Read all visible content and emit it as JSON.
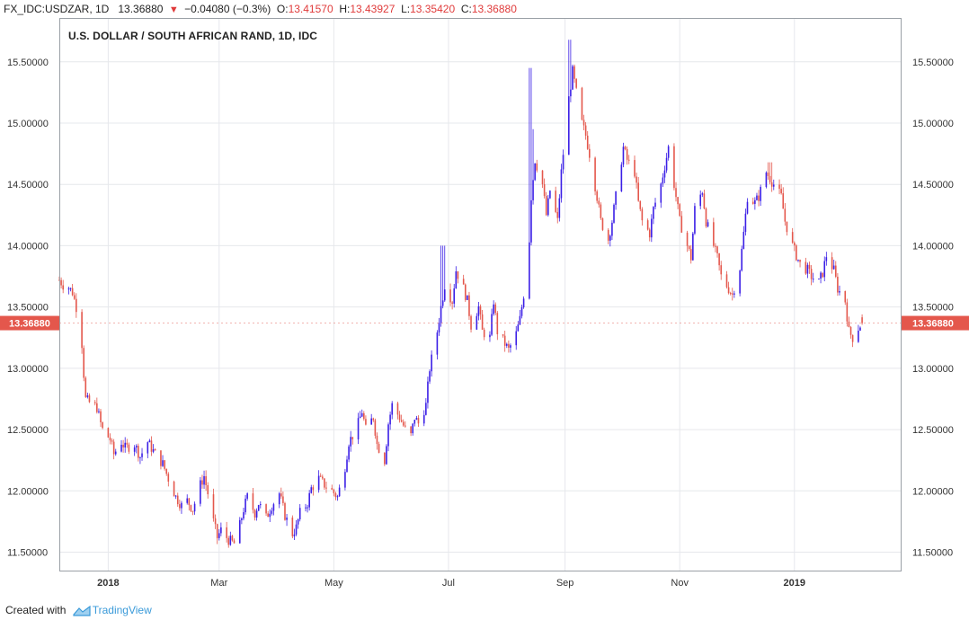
{
  "header": {
    "symbol": "FX_IDC:USDZAR, 1D",
    "last": "13.36880",
    "change": "−0.04080 (−0.3%)",
    "o_label": "O:",
    "o_value": "13.41570",
    "h_label": "H:",
    "h_value": "13.43927",
    "l_label": "L:",
    "l_value": "13.35420",
    "c_label": "C:",
    "c_value": "13.36880"
  },
  "footer": {
    "created_with": "Created with",
    "brand": "TradingView"
  },
  "chart_data": {
    "type": "candlestick",
    "title": "U.S. DOLLAR / SOUTH AFRICAN RAND, 1D, IDC",
    "ylim": [
      11.35,
      15.85
    ],
    "y_ticks": [
      "11.50000",
      "12.00000",
      "12.50000",
      "13.00000",
      "13.50000",
      "14.00000",
      "14.50000",
      "15.00000",
      "15.50000"
    ],
    "x_tick_labels": [
      {
        "label": "2018",
        "x": "2018-01-01",
        "bold": true
      },
      {
        "label": "Mar",
        "x": "2018-03-01",
        "bold": false
      },
      {
        "label": "May",
        "x": "2018-05-01",
        "bold": false
      },
      {
        "label": "Jul",
        "x": "2018-07-01",
        "bold": false
      },
      {
        "label": "Sep",
        "x": "2018-09-01",
        "bold": false
      },
      {
        "label": "Nov",
        "x": "2018-11-01",
        "bold": false
      },
      {
        "label": "2019",
        "x": "2019-01-01",
        "bold": true
      }
    ],
    "xlim": [
      "2017-12-06",
      "2019-02-27"
    ],
    "last_price": "13.36880",
    "last_value": 13.3688,
    "up_color": "#3b1fe6",
    "down_color": "#e4574c",
    "price_label_color": "#e4574c",
    "close_path": [
      [
        "2017-12-06",
        13.72
      ],
      [
        "2017-12-08",
        13.68
      ],
      [
        "2017-12-11",
        13.66
      ],
      [
        "2017-12-13",
        13.62
      ],
      [
        "2017-12-15",
        13.5
      ],
      [
        "2017-12-18",
        13.2
      ],
      [
        "2017-12-19",
        12.95
      ],
      [
        "2017-12-20",
        12.75
      ],
      [
        "2017-12-22",
        12.72
      ],
      [
        "2017-12-26",
        12.68
      ],
      [
        "2017-12-28",
        12.55
      ],
      [
        "2017-12-29",
        12.5
      ],
      [
        "2018-01-02",
        12.42
      ],
      [
        "2018-01-04",
        12.3
      ],
      [
        "2018-01-08",
        12.4
      ],
      [
        "2018-01-10",
        12.35
      ],
      [
        "2018-01-15",
        12.38
      ],
      [
        "2018-01-18",
        12.28
      ],
      [
        "2018-01-22",
        12.4
      ],
      [
        "2018-01-26",
        12.3
      ],
      [
        "2018-01-30",
        12.22
      ],
      [
        "2018-02-02",
        12.1
      ],
      [
        "2018-02-06",
        11.95
      ],
      [
        "2018-02-09",
        11.88
      ],
      [
        "2018-02-12",
        11.92
      ],
      [
        "2018-02-15",
        11.85
      ],
      [
        "2018-02-19",
        12.05
      ],
      [
        "2018-02-21",
        12.12
      ],
      [
        "2018-02-23",
        11.98
      ],
      [
        "2018-02-26",
        11.75
      ],
      [
        "2018-02-28",
        11.62
      ],
      [
        "2018-03-02",
        11.68
      ],
      [
        "2018-03-06",
        11.6
      ],
      [
        "2018-03-09",
        11.57
      ],
      [
        "2018-03-12",
        11.72
      ],
      [
        "2018-03-14",
        11.85
      ],
      [
        "2018-03-16",
        11.95
      ],
      [
        "2018-03-20",
        11.82
      ],
      [
        "2018-03-22",
        11.9
      ],
      [
        "2018-03-26",
        11.78
      ],
      [
        "2018-03-29",
        11.88
      ],
      [
        "2018-04-02",
        11.98
      ],
      [
        "2018-04-05",
        11.8
      ],
      [
        "2018-04-09",
        11.65
      ],
      [
        "2018-04-11",
        11.7
      ],
      [
        "2018-04-13",
        11.82
      ],
      [
        "2018-04-17",
        11.9
      ],
      [
        "2018-04-19",
        12.02
      ],
      [
        "2018-04-23",
        12.1
      ],
      [
        "2018-04-26",
        12.05
      ],
      [
        "2018-04-30",
        12.0
      ],
      [
        "2018-05-03",
        11.95
      ],
      [
        "2018-05-07",
        12.2
      ],
      [
        "2018-05-09",
        12.4
      ],
      [
        "2018-05-11",
        12.45
      ],
      [
        "2018-05-14",
        12.55
      ],
      [
        "2018-05-16",
        12.65
      ],
      [
        "2018-05-18",
        12.5
      ],
      [
        "2018-05-22",
        12.6
      ],
      [
        "2018-05-24",
        12.38
      ],
      [
        "2018-05-28",
        12.25
      ],
      [
        "2018-05-30",
        12.55
      ],
      [
        "2018-06-01",
        12.7
      ],
      [
        "2018-06-05",
        12.6
      ],
      [
        "2018-06-08",
        12.5
      ],
      [
        "2018-06-11",
        12.45
      ],
      [
        "2018-06-13",
        12.6
      ],
      [
        "2018-06-15",
        12.55
      ],
      [
        "2018-06-19",
        12.7
      ],
      [
        "2018-06-21",
        13.0
      ],
      [
        "2018-06-25",
        13.3
      ],
      [
        "2018-06-27",
        13.5
      ],
      [
        "2018-06-29",
        13.68
      ],
      [
        "2018-07-03",
        13.55
      ],
      [
        "2018-07-05",
        13.8
      ],
      [
        "2018-07-09",
        13.65
      ],
      [
        "2018-07-11",
        13.55
      ],
      [
        "2018-07-13",
        13.35
      ],
      [
        "2018-07-17",
        13.5
      ],
      [
        "2018-07-19",
        13.3
      ],
      [
        "2018-07-23",
        13.25
      ],
      [
        "2018-07-25",
        13.55
      ],
      [
        "2018-07-27",
        13.3
      ],
      [
        "2018-07-31",
        13.2
      ],
      [
        "2018-08-02",
        13.15
      ],
      [
        "2018-08-06",
        13.28
      ],
      [
        "2018-08-08",
        13.4
      ],
      [
        "2018-08-10",
        13.6
      ],
      [
        "2018-08-13",
        14.05
      ],
      [
        "2018-08-14",
        14.4
      ],
      [
        "2018-08-16",
        14.7
      ],
      [
        "2018-08-20",
        14.5
      ],
      [
        "2018-08-22",
        14.25
      ],
      [
        "2018-08-24",
        14.45
      ],
      [
        "2018-08-28",
        14.2
      ],
      [
        "2018-08-30",
        14.6
      ],
      [
        "2018-09-03",
        15.2
      ],
      [
        "2018-09-05",
        15.42
      ],
      [
        "2018-09-07",
        15.25
      ],
      [
        "2018-09-10",
        15.0
      ],
      [
        "2018-09-12",
        14.9
      ],
      [
        "2018-09-14",
        14.75
      ],
      [
        "2018-09-18",
        14.4
      ],
      [
        "2018-09-20",
        14.2
      ],
      [
        "2018-09-24",
        14.05
      ],
      [
        "2018-09-26",
        14.2
      ],
      [
        "2018-09-28",
        14.4
      ],
      [
        "2018-10-02",
        14.8
      ],
      [
        "2018-10-04",
        14.7
      ],
      [
        "2018-10-08",
        14.6
      ],
      [
        "2018-10-10",
        14.35
      ],
      [
        "2018-10-12",
        14.2
      ],
      [
        "2018-10-16",
        14.1
      ],
      [
        "2018-10-18",
        14.3
      ],
      [
        "2018-10-22",
        14.5
      ],
      [
        "2018-10-24",
        14.65
      ],
      [
        "2018-10-26",
        14.8
      ],
      [
        "2018-10-30",
        14.4
      ],
      [
        "2018-11-01",
        14.2
      ],
      [
        "2018-11-05",
        14.0
      ],
      [
        "2018-11-07",
        13.9
      ],
      [
        "2018-11-09",
        14.3
      ],
      [
        "2018-11-13",
        14.45
      ],
      [
        "2018-11-15",
        14.2
      ],
      [
        "2018-11-19",
        14.0
      ],
      [
        "2018-11-21",
        13.9
      ],
      [
        "2018-11-23",
        13.75
      ],
      [
        "2018-11-27",
        13.65
      ],
      [
        "2018-11-29",
        13.6
      ],
      [
        "2018-12-03",
        13.82
      ],
      [
        "2018-12-05",
        14.1
      ],
      [
        "2018-12-07",
        14.4
      ],
      [
        "2018-12-11",
        14.35
      ],
      [
        "2018-12-13",
        14.4
      ],
      [
        "2018-12-17",
        14.6
      ],
      [
        "2018-12-19",
        14.55
      ],
      [
        "2018-12-21",
        14.5
      ],
      [
        "2018-12-25",
        14.4
      ],
      [
        "2018-12-27",
        14.2
      ],
      [
        "2018-12-31",
        14.0
      ],
      [
        "2019-01-02",
        13.92
      ],
      [
        "2019-01-04",
        13.85
      ],
      [
        "2019-01-08",
        13.8
      ],
      [
        "2019-01-10",
        13.75
      ],
      [
        "2019-01-14",
        13.7
      ],
      [
        "2019-01-16",
        13.78
      ],
      [
        "2019-01-18",
        13.92
      ],
      [
        "2019-01-22",
        13.8
      ],
      [
        "2019-01-24",
        13.65
      ],
      [
        "2019-01-28",
        13.55
      ],
      [
        "2019-01-30",
        13.3
      ],
      [
        "2019-02-01",
        13.25
      ],
      [
        "2019-02-04",
        13.33
      ],
      [
        "2019-02-06",
        13.37
      ]
    ],
    "spikes": [
      [
        "2018-08-13",
        15.45
      ],
      [
        "2018-08-14",
        14.95
      ],
      [
        "2018-09-03",
        15.68
      ],
      [
        "2018-12-19",
        14.68
      ],
      [
        "2018-06-28",
        14.0
      ]
    ],
    "last_candle": {
      "date": "2019-02-06",
      "open": 13.4157,
      "high": 13.43927,
      "low": 13.3542,
      "close": 13.3688
    }
  }
}
